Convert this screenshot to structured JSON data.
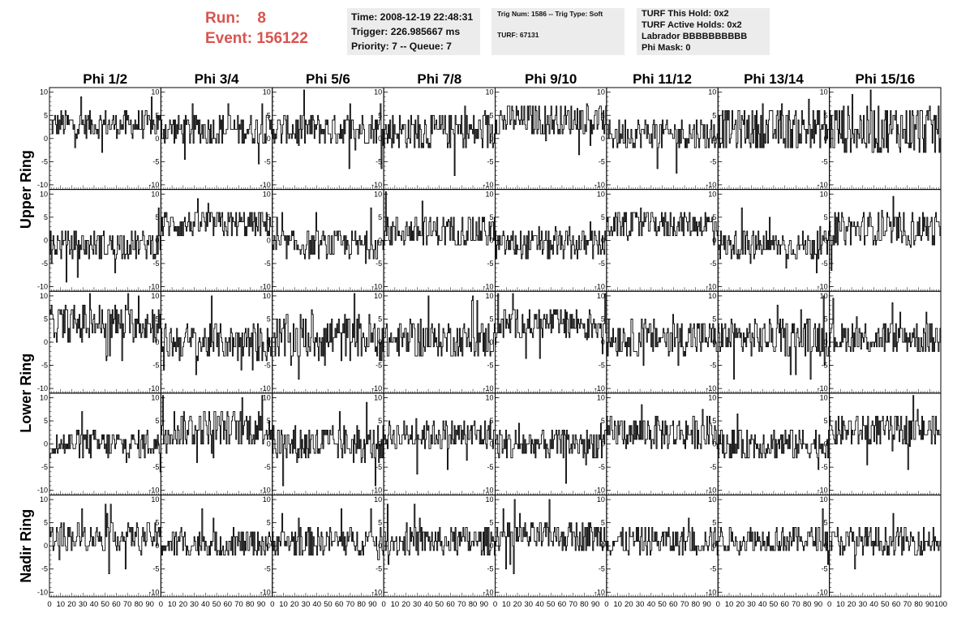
{
  "run": {
    "run_label": "Run:",
    "run_value": "8",
    "event_label": "Event:",
    "event_value": "156122"
  },
  "info_time": {
    "time": "Time: 2008-12-19 22:48:31",
    "trigger": "Trigger: 226.985667 ms",
    "priority": "Priority: 7 -- Queue: 7"
  },
  "info_trig": {
    "trig": "Trig Num: 1586 -- Trig Type: Soft",
    "turf": "TURF: 67131"
  },
  "info_turf": {
    "hold": "TURF This Hold: 0x2",
    "active": "TURF Active Holds: 0x2",
    "labrador": "Labrador BBBBBBBBBB",
    "phimask": "Phi Mask: 0"
  },
  "colors": {
    "accent": "#d9534f",
    "trace": "#000000",
    "panel_bg": "#ececec"
  },
  "chart_data": {
    "type": "line",
    "columns": [
      "Phi 1/2",
      "Phi 3/4",
      "Phi 5/6",
      "Phi 7/8",
      "Phi 9/10",
      "Phi 11/12",
      "Phi 13/14",
      "Phi 15/16"
    ],
    "row_groups": [
      {
        "label": "Upper Ring",
        "rows": 2
      },
      {
        "label": "Lower Ring",
        "rows": 2
      },
      {
        "label": "Nadir Ring",
        "rows": 1
      }
    ],
    "ylim": [
      -11,
      11
    ],
    "yticks": [
      10,
      5,
      0,
      -5,
      -10
    ],
    "xlim": [
      0,
      100
    ],
    "xticks": [
      "0",
      "10",
      "20",
      "30",
      "40",
      "50",
      "60",
      "70",
      "80",
      "90",
      "100"
    ],
    "samples_per_trace": 128,
    "baselines": [
      [
        3,
        2,
        2,
        1.5,
        4,
        1,
        2,
        2
      ],
      [
        -1,
        3.5,
        -1,
        2,
        -1,
        3.5,
        -1,
        2.5
      ],
      [
        4,
        0,
        1,
        0.5,
        4,
        1,
        1,
        1
      ],
      [
        0,
        3.5,
        0,
        2,
        0,
        2.5,
        0,
        3
      ],
      [
        2,
        0.5,
        1,
        1,
        2,
        1,
        1.5,
        1
      ]
    ],
    "amplitudes": [
      [
        3,
        3.5,
        3.5,
        4,
        3.5,
        3.5,
        4.5,
        5.5
      ],
      [
        3,
        3,
        3,
        3.5,
        3,
        3,
        3,
        3.5
      ],
      [
        4,
        4,
        5,
        4,
        3.5,
        4,
        4,
        3.5
      ],
      [
        3,
        4,
        4,
        3.5,
        3.5,
        3.5,
        3.5,
        3.5
      ],
      [
        3,
        3,
        3,
        3,
        3,
        3,
        3,
        3
      ]
    ]
  }
}
